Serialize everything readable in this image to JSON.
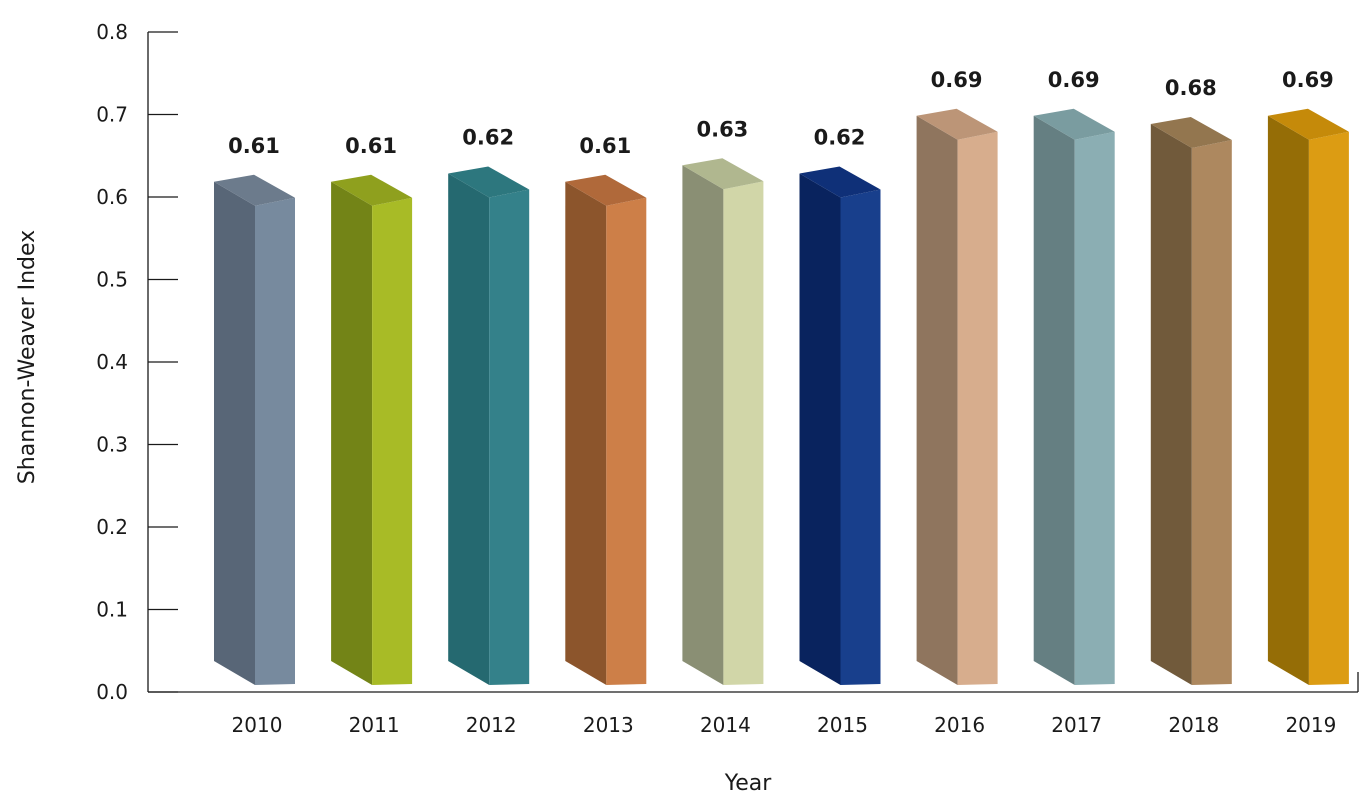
{
  "chart_data": {
    "type": "bar",
    "title": "",
    "xlabel": "Year",
    "ylabel": "Shannon-Weaver Index",
    "ylim": [
      0,
      0.8
    ],
    "yticks": [
      "0.0",
      "0.1",
      "0.2",
      "0.3",
      "0.4",
      "0.5",
      "0.6",
      "0.7",
      "0.8"
    ],
    "grid": false,
    "categories": [
      "2010",
      "2011",
      "2012",
      "2013",
      "2014",
      "2015",
      "2016",
      "2017",
      "2018",
      "2019"
    ],
    "values": [
      0.61,
      0.61,
      0.62,
      0.61,
      0.63,
      0.62,
      0.69,
      0.69,
      0.68,
      0.69
    ],
    "data_labels": [
      "0.61",
      "0.61",
      "0.62",
      "0.61",
      "0.63",
      "0.62",
      "0.69",
      "0.69",
      "0.68",
      "0.69"
    ],
    "bar_colors": [
      {
        "front": "#778a9e",
        "side": "#586677",
        "top": "#6c7b8c"
      },
      {
        "front": "#a8bb26",
        "side": "#738417",
        "top": "#8fa01e"
      },
      {
        "front": "#34818a",
        "side": "#256970",
        "top": "#2d777e"
      },
      {
        "front": "#cd7f48",
        "side": "#8c552c",
        "top": "#b0693a"
      },
      {
        "front": "#d1d6a8",
        "side": "#8a8f74",
        "top": "#b0b78f"
      },
      {
        "front": "#183f8c",
        "side": "#09235e",
        "top": "#0f3078"
      },
      {
        "front": "#d7ad8d",
        "side": "#8f755e",
        "top": "#bc9577"
      },
      {
        "front": "#8baeb3",
        "side": "#657f82",
        "top": "#7a9ca0"
      },
      {
        "front": "#ad885f",
        "side": "#715a3b",
        "top": "#93764f"
      },
      {
        "front": "#dc9c13",
        "side": "#956d06",
        "top": "#c58a0a"
      }
    ]
  }
}
